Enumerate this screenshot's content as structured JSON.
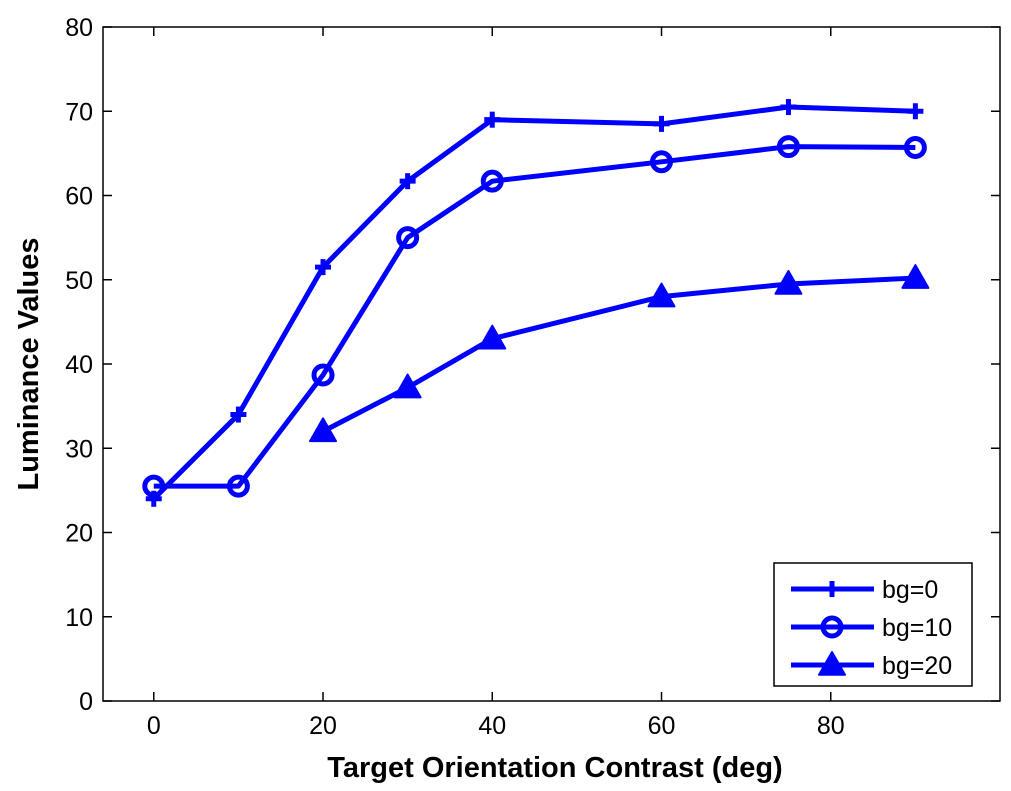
{
  "chart_data": {
    "type": "line",
    "title": "",
    "xlabel": "Target Orientation Contrast (deg)",
    "ylabel": "Luminance Values",
    "xlim": [
      -6,
      100
    ],
    "ylim": [
      0,
      80
    ],
    "xticks": [
      0,
      20,
      40,
      60,
      80
    ],
    "yticks": [
      0,
      10,
      20,
      30,
      40,
      50,
      60,
      70,
      80
    ],
    "grid": false,
    "legend_position": "bottom-right",
    "line_color": "#0000ff",
    "series": [
      {
        "name": "bg=0",
        "marker": "plus",
        "x": [
          0,
          10,
          20,
          30,
          40,
          60,
          75,
          90
        ],
        "y": [
          24,
          34,
          51.5,
          61.7,
          69,
          68.5,
          70.5,
          70
        ]
      },
      {
        "name": "bg=10",
        "marker": "circle",
        "x": [
          0,
          10,
          20,
          30,
          40,
          60,
          75,
          90
        ],
        "y": [
          25.5,
          25.5,
          38.7,
          55,
          61.7,
          64,
          65.8,
          65.7
        ]
      },
      {
        "name": "bg=20",
        "marker": "triangle",
        "x": [
          20,
          30,
          40,
          60,
          75,
          90
        ],
        "y": [
          32,
          37.2,
          43,
          48,
          49.5,
          50.2
        ]
      }
    ]
  }
}
